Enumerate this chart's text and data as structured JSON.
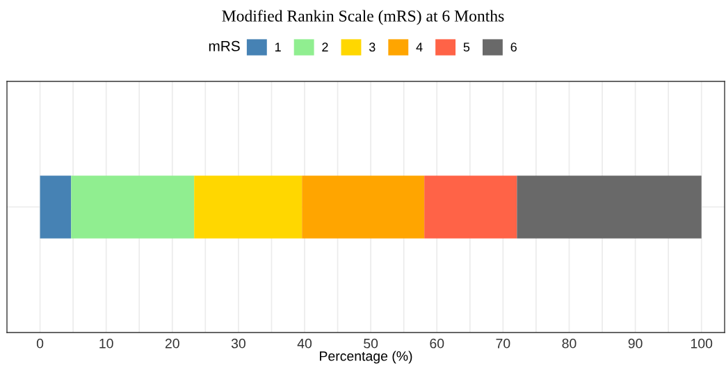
{
  "chart_data": {
    "type": "bar",
    "orientation": "horizontal",
    "stacked": true,
    "title": "Modified Rankin Scale (mRS) at 6 Months",
    "xlabel": "Percentage (%)",
    "legend_title": "mRS",
    "legend": "top",
    "grid": true,
    "categories": [
      null
    ],
    "series": [
      {
        "name": "1",
        "color": "#4682b4",
        "values": [
          4.7
        ]
      },
      {
        "name": "2",
        "color": "#90ee90",
        "values": [
          18.6
        ]
      },
      {
        "name": "3",
        "color": "#ffd700",
        "values": [
          16.3
        ]
      },
      {
        "name": "4",
        "color": "#ffa500",
        "values": [
          18.5
        ]
      },
      {
        "name": "5",
        "color": "#ff6347",
        "values": [
          14.0
        ]
      },
      {
        "name": "6",
        "color": "#696969",
        "values": [
          27.9
        ]
      }
    ],
    "xlim": [
      -5,
      103.5
    ],
    "xticks": [
      0,
      {
        "value": 5,
        "label": null
      },
      10,
      {
        "value": 15,
        "label": null
      },
      20,
      {
        "value": 25,
        "label": null
      },
      30,
      {
        "value": 35,
        "label": null
      },
      40,
      {
        "value": 45,
        "label": null
      },
      50,
      {
        "value": 55,
        "label": null
      },
      60,
      {
        "value": 65,
        "label": null
      },
      70,
      {
        "value": 75,
        "label": null
      },
      80,
      {
        "value": 85,
        "label": null
      },
      90,
      {
        "value": 95,
        "label": null
      },
      100
    ]
  }
}
